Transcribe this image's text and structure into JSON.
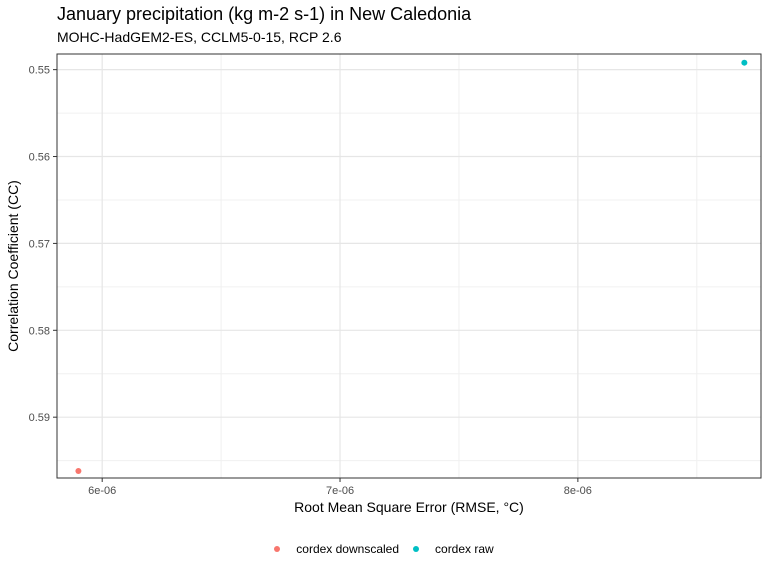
{
  "chart_data": {
    "type": "scatter",
    "title": "January precipitation (kg m-2 s-1) in New Caledonia",
    "subtitle": "MOHC-HadGEM2-ES, CCLM5-0-15, RCP 2.6",
    "xlabel": "Root Mean Square Error (RMSE, °C)",
    "ylabel": "Correlation Coefficient (CC)",
    "xlim": [
      5.81e-06,
      8.77e-06
    ],
    "ylim": [
      0.5482,
      0.597
    ],
    "y_reversed": true,
    "grid": true,
    "legend_position": "bottom",
    "x_ticks": [
      {
        "value": 6e-06,
        "label": "6e-06"
      },
      {
        "value": 7e-06,
        "label": "7e-06"
      },
      {
        "value": 8e-06,
        "label": "8e-06"
      }
    ],
    "y_ticks": [
      {
        "value": 0.55,
        "label": "0.55"
      },
      {
        "value": 0.56,
        "label": "0.56"
      },
      {
        "value": 0.57,
        "label": "0.57"
      },
      {
        "value": 0.58,
        "label": "0.58"
      },
      {
        "value": 0.59,
        "label": "0.59"
      }
    ],
    "series": [
      {
        "name": "cordex downscaled",
        "color": "#F8766D",
        "points": [
          {
            "x": 5.9e-06,
            "y": 0.5962
          }
        ]
      },
      {
        "name": "cordex raw",
        "color": "#00BFC4",
        "points": [
          {
            "x": 8.7e-06,
            "y": 0.5492
          }
        ]
      }
    ]
  }
}
